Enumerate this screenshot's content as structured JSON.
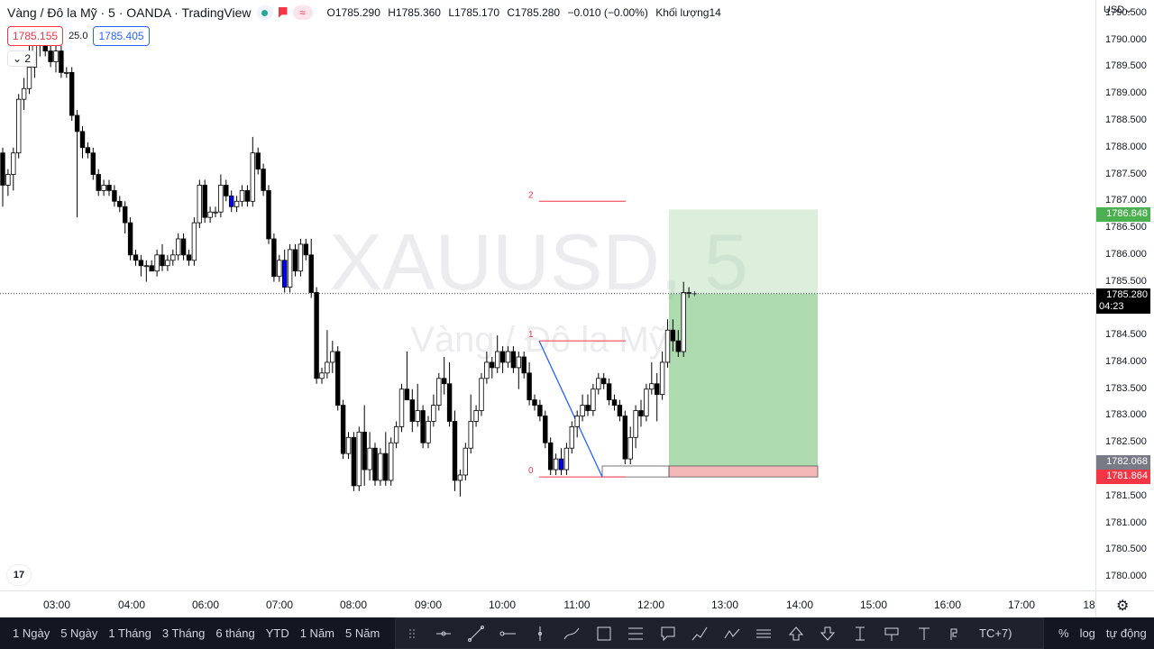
{
  "legend": {
    "title": "Vàng / Đô la Mỹ · 5 · OANDA · TradingView",
    "open": "O1785.290",
    "high": "H1785.360",
    "low": "L1785.170",
    "close": "C1785.280",
    "change": "−0.010 (−0.00%)",
    "volume": "Khối lượng14",
    "status_icon": "market-open-dot",
    "flag_icon": "flag-icon",
    "wave_icon": "≈"
  },
  "trade": {
    "bid": "1785.155",
    "spread": "25.0",
    "ask": "1785.405"
  },
  "collapse": {
    "label": "2"
  },
  "watermark": {
    "symbol": "XAUUSD, 5",
    "name": "Vàng / Đô la Mỹ"
  },
  "price_axis": {
    "currency": "USD",
    "labels": [
      "1790.500",
      "1790.000",
      "1789.500",
      "1789.000",
      "1788.500",
      "1788.000",
      "1787.500",
      "1787.000",
      "1786.500",
      "1786.000",
      "1785.500",
      "1785.000",
      "1784.500",
      "1784.000",
      "1783.500",
      "1783.000",
      "1782.500",
      "1782.000",
      "1781.500",
      "1781.000",
      "1780.500",
      "1780.000"
    ],
    "tags": {
      "target": "1786.848",
      "current": "1785.280",
      "countdown": "04:23",
      "entry": "1782.068",
      "stop": "1781.864"
    }
  },
  "time_axis": {
    "labels": [
      "03:00",
      "04:00",
      "06:00",
      "07:00",
      "08:00",
      "09:00",
      "10:00",
      "11:00",
      "12:00",
      "13:00",
      "14:00",
      "15:00",
      "16:00",
      "17:00",
      "18"
    ]
  },
  "fib_labels": [
    "2",
    "1",
    "0"
  ],
  "bottom": {
    "ranges": [
      "1 Ngày",
      "5 Ngày",
      "1 Tháng",
      "3 Tháng",
      "6 tháng",
      "YTD",
      "1 Năm",
      "5 Năm"
    ],
    "timezone": "TC+7)",
    "right": [
      "%",
      "log",
      "tự động"
    ],
    "tools": [
      "drag-handle-icon",
      "horizontal-line-icon",
      "trend-line-icon",
      "horizontal-ray-icon",
      "vertical-line-icon",
      "brush-icon",
      "rectangle-icon",
      "fib-retracement-icon",
      "callout-icon",
      "long-position-icon",
      "path-icon",
      "parallel-lines-icon",
      "arrow-up-icon",
      "arrow-down-icon",
      "price-range-icon",
      "note-icon",
      "text-icon",
      "pitchfork-icon"
    ]
  },
  "colors": {
    "up": "#ffffff",
    "down": "#000000",
    "highlight": "#0000ff",
    "target_zone": "#a5d6a7",
    "stop_zone": "#ef9a9a",
    "bid": "#f23645",
    "ask": "#2962ff"
  },
  "chart_data": {
    "type": "candlestick",
    "symbol": "XAUUSD",
    "timeframe": "5",
    "ylim": [
      1779.75,
      1790.75
    ],
    "candles": [
      [
        1787.9,
        1788.0,
        1786.9,
        1787.3
      ],
      [
        1787.3,
        1787.6,
        1787.1,
        1787.5
      ],
      [
        1787.5,
        1788.0,
        1787.2,
        1787.9
      ],
      [
        1787.9,
        1789.0,
        1787.8,
        1788.9
      ],
      [
        1788.9,
        1789.3,
        1788.7,
        1789.1
      ],
      [
        1789.1,
        1790.2,
        1789.0,
        1789.5
      ],
      [
        1789.5,
        1790.0,
        1789.3,
        1789.9
      ],
      [
        1789.9,
        1790.1,
        1789.7,
        1790.0
      ],
      [
        1789.9,
        1790.0,
        1789.7,
        1789.8
      ],
      [
        1789.8,
        1789.9,
        1789.5,
        1789.6
      ],
      [
        1789.6,
        1789.9,
        1789.4,
        1789.8
      ],
      [
        1789.8,
        1789.9,
        1789.3,
        1789.4
      ],
      [
        1789.4,
        1789.5,
        1789.3,
        1789.4
      ],
      [
        1789.4,
        1789.5,
        1788.5,
        1788.6
      ],
      [
        1788.6,
        1788.7,
        1786.7,
        1788.3
      ],
      [
        1788.3,
        1788.4,
        1787.8,
        1788.0
      ],
      [
        1788.0,
        1788.1,
        1787.8,
        1787.9
      ],
      [
        1787.9,
        1788.0,
        1787.4,
        1787.5
      ],
      [
        1787.5,
        1787.6,
        1787.1,
        1787.2
      ],
      [
        1787.2,
        1787.4,
        1787.1,
        1787.3
      ],
      [
        1787.3,
        1787.4,
        1787.1,
        1787.2
      ],
      [
        1787.2,
        1787.3,
        1786.9,
        1787.0
      ],
      [
        1787.0,
        1787.1,
        1786.8,
        1786.9
      ],
      [
        1786.9,
        1787.0,
        1786.4,
        1786.6
      ],
      [
        1786.6,
        1786.7,
        1785.9,
        1786.0
      ],
      [
        1786.0,
        1786.1,
        1785.8,
        1785.9
      ],
      [
        1785.9,
        1786.0,
        1785.6,
        1785.8
      ],
      [
        1785.8,
        1785.9,
        1785.5,
        1785.8
      ],
      [
        1785.8,
        1785.9,
        1785.7,
        1785.7
      ],
      [
        1785.7,
        1786.1,
        1785.6,
        1786.0
      ],
      [
        1786.0,
        1786.2,
        1785.7,
        1785.8
      ],
      [
        1785.8,
        1786.0,
        1785.7,
        1785.9
      ],
      [
        1785.9,
        1786.1,
        1785.8,
        1786.0
      ],
      [
        1786.0,
        1786.4,
        1785.9,
        1786.3
      ],
      [
        1786.3,
        1786.4,
        1785.9,
        1786.0
      ],
      [
        1786.0,
        1786.1,
        1785.8,
        1785.9
      ],
      [
        1785.9,
        1786.7,
        1785.8,
        1786.6
      ],
      [
        1786.6,
        1787.4,
        1786.5,
        1787.3
      ],
      [
        1787.3,
        1787.4,
        1786.6,
        1786.7
      ],
      [
        1786.7,
        1786.9,
        1786.6,
        1786.8
      ],
      [
        1786.8,
        1786.9,
        1786.7,
        1786.8
      ],
      [
        1786.8,
        1787.5,
        1786.7,
        1787.3
      ],
      [
        1787.3,
        1787.4,
        1787.0,
        1787.1
      ],
      [
        1787.1,
        1787.2,
        1786.8,
        1786.9
      ],
      [
        1786.9,
        1787.1,
        1786.8,
        1787.0
      ],
      [
        1787.0,
        1787.3,
        1786.9,
        1787.2
      ],
      [
        1787.2,
        1787.3,
        1786.9,
        1787.0
      ],
      [
        1787.0,
        1788.2,
        1786.9,
        1787.9
      ],
      [
        1787.9,
        1788.0,
        1787.5,
        1787.6
      ],
      [
        1787.6,
        1787.7,
        1787.1,
        1787.2
      ],
      [
        1787.2,
        1787.3,
        1786.2,
        1786.3
      ],
      [
        1786.3,
        1786.4,
        1785.5,
        1785.6
      ],
      [
        1785.6,
        1786.0,
        1785.5,
        1785.9
      ],
      [
        1785.9,
        1786.1,
        1785.3,
        1785.4
      ],
      [
        1785.4,
        1786.2,
        1785.3,
        1786.1
      ],
      [
        1786.1,
        1786.2,
        1785.6,
        1785.7
      ],
      [
        1785.7,
        1786.3,
        1785.6,
        1786.2
      ],
      [
        1786.2,
        1786.3,
        1785.9,
        1786.0
      ],
      [
        1786.0,
        1786.3,
        1785.2,
        1785.3
      ],
      [
        1785.3,
        1785.4,
        1783.6,
        1783.7
      ],
      [
        1783.7,
        1783.9,
        1783.6,
        1783.8
      ],
      [
        1783.8,
        1784.6,
        1783.7,
        1784.0
      ],
      [
        1784.0,
        1784.4,
        1783.8,
        1784.2
      ],
      [
        1784.2,
        1784.3,
        1783.1,
        1783.2
      ],
      [
        1783.2,
        1783.3,
        1782.2,
        1782.3
      ],
      [
        1782.3,
        1782.7,
        1782.2,
        1782.6
      ],
      [
        1782.6,
        1782.7,
        1781.6,
        1781.7
      ],
      [
        1781.7,
        1782.8,
        1781.6,
        1782.7
      ],
      [
        1782.7,
        1783.2,
        1781.7,
        1782.0
      ],
      [
        1782.0,
        1782.7,
        1781.8,
        1782.4
      ],
      [
        1782.4,
        1782.5,
        1781.7,
        1781.8
      ],
      [
        1781.8,
        1782.4,
        1781.7,
        1782.3
      ],
      [
        1782.3,
        1782.7,
        1781.7,
        1781.8
      ],
      [
        1781.8,
        1782.6,
        1781.7,
        1782.5
      ],
      [
        1782.5,
        1782.9,
        1782.4,
        1782.8
      ],
      [
        1782.8,
        1783.6,
        1782.7,
        1783.5
      ],
      [
        1783.5,
        1784.2,
        1783.4,
        1783.3
      ],
      [
        1783.3,
        1783.5,
        1782.7,
        1782.9
      ],
      [
        1782.9,
        1783.6,
        1782.8,
        1783.1
      ],
      [
        1783.1,
        1783.2,
        1782.4,
        1782.5
      ],
      [
        1782.5,
        1783.0,
        1782.4,
        1782.9
      ],
      [
        1782.9,
        1783.4,
        1782.8,
        1783.2
      ],
      [
        1783.2,
        1783.8,
        1783.1,
        1783.7
      ],
      [
        1783.7,
        1784.1,
        1783.4,
        1783.6
      ],
      [
        1783.6,
        1784.0,
        1782.8,
        1782.9
      ],
      [
        1782.9,
        1783.1,
        1781.6,
        1781.8
      ],
      [
        1781.8,
        1782.0,
        1781.5,
        1781.9
      ],
      [
        1781.9,
        1782.5,
        1781.8,
        1782.4
      ],
      [
        1782.4,
        1783.4,
        1782.3,
        1782.9
      ],
      [
        1782.9,
        1783.2,
        1782.8,
        1783.1
      ],
      [
        1783.1,
        1783.8,
        1783.0,
        1783.7
      ],
      [
        1783.7,
        1784.2,
        1783.6,
        1784.0
      ],
      [
        1784.0,
        1784.1,
        1783.7,
        1783.9
      ],
      [
        1783.9,
        1784.5,
        1783.8,
        1784.2
      ],
      [
        1784.2,
        1784.3,
        1783.8,
        1784.0
      ],
      [
        1784.0,
        1784.3,
        1783.9,
        1784.2
      ],
      [
        1784.2,
        1784.3,
        1783.8,
        1783.9
      ],
      [
        1783.9,
        1784.2,
        1783.5,
        1784.1
      ],
      [
        1784.1,
        1784.2,
        1783.7,
        1783.8
      ],
      [
        1783.8,
        1784.0,
        1783.2,
        1783.3
      ],
      [
        1783.3,
        1783.4,
        1783.1,
        1783.2
      ],
      [
        1783.2,
        1783.3,
        1782.9,
        1783.0
      ],
      [
        1783.0,
        1783.1,
        1782.4,
        1782.5
      ],
      [
        1782.5,
        1782.6,
        1781.9,
        1782.0
      ],
      [
        1782.0,
        1782.3,
        1781.9,
        1782.2
      ],
      [
        1782.2,
        1782.4,
        1781.9,
        1782.0
      ],
      [
        1782.0,
        1782.5,
        1781.9,
        1782.4
      ],
      [
        1782.4,
        1782.9,
        1782.3,
        1782.8
      ],
      [
        1782.8,
        1783.1,
        1782.6,
        1783.0
      ],
      [
        1783.0,
        1783.4,
        1782.9,
        1783.2
      ],
      [
        1783.2,
        1783.4,
        1783.0,
        1783.1
      ],
      [
        1783.1,
        1783.6,
        1783.0,
        1783.5
      ],
      [
        1783.5,
        1783.8,
        1783.4,
        1783.7
      ],
      [
        1783.7,
        1783.8,
        1783.5,
        1783.6
      ],
      [
        1783.6,
        1783.7,
        1783.2,
        1783.3
      ],
      [
        1783.3,
        1783.4,
        1783.1,
        1783.2
      ],
      [
        1783.2,
        1783.3,
        1782.9,
        1783.0
      ],
      [
        1783.0,
        1783.1,
        1782.1,
        1782.2
      ],
      [
        1782.2,
        1782.8,
        1782.1,
        1782.6
      ],
      [
        1782.6,
        1783.2,
        1782.4,
        1783.1
      ],
      [
        1783.1,
        1783.3,
        1782.8,
        1783.0
      ],
      [
        1783.0,
        1783.6,
        1782.9,
        1783.5
      ],
      [
        1783.5,
        1784.0,
        1783.4,
        1783.6
      ],
      [
        1783.6,
        1783.8,
        1782.9,
        1783.4
      ],
      [
        1783.4,
        1784.2,
        1783.3,
        1784.0
      ],
      [
        1784.0,
        1784.8,
        1783.9,
        1784.6
      ],
      [
        1784.6,
        1784.8,
        1784.2,
        1784.4
      ],
      [
        1784.4,
        1784.6,
        1784.1,
        1784.2
      ],
      [
        1784.2,
        1785.5,
        1784.1,
        1785.3
      ],
      [
        1785.3,
        1785.4,
        1785.2,
        1785.3
      ]
    ],
    "highlight_indices": [
      41,
      43,
      53,
      86,
      88,
      97,
      105
    ],
    "current_price": 1785.28,
    "position": {
      "type": "long",
      "entry": 1782.068,
      "target": 1786.848,
      "stop": 1781.864
    },
    "fibonacci": {
      "level_0": 1781.864,
      "level_1": 1784.4,
      "level_2": 1787.0
    }
  }
}
